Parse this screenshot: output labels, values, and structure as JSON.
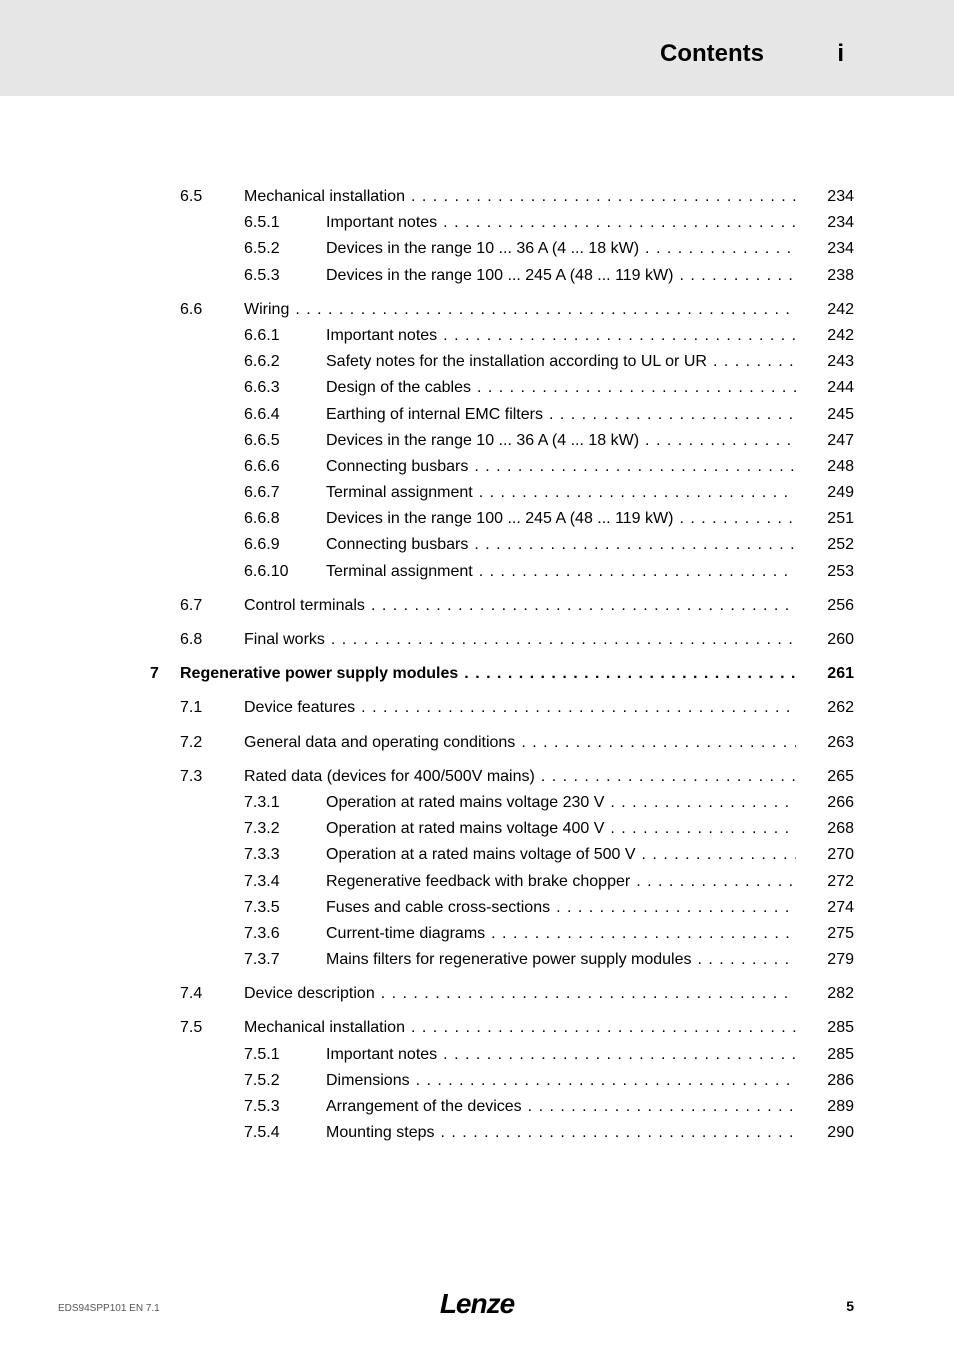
{
  "header": {
    "title": "Contents",
    "marker": "i"
  },
  "toc": [
    {
      "level": "sec",
      "num": "6.5",
      "title": "Mechanical installation",
      "page": "234",
      "gap": false
    },
    {
      "level": "sub",
      "num": "6.5.1",
      "title": "Important notes",
      "page": "234"
    },
    {
      "level": "sub",
      "num": "6.5.2",
      "title": "Devices in the range 10 ... 36 A (4 ... 18 kW)",
      "page": "234"
    },
    {
      "level": "sub",
      "num": "6.5.3",
      "title": "Devices in the range 100 ... 245 A (48 ... 119 kW)",
      "page": "238"
    },
    {
      "level": "sec",
      "num": "6.6",
      "title": "Wiring",
      "page": "242",
      "gap": true
    },
    {
      "level": "sub",
      "num": "6.6.1",
      "title": "Important notes",
      "page": "242"
    },
    {
      "level": "sub",
      "num": "6.6.2",
      "title": "Safety notes for the installation according to UL  or UR",
      "page": "243"
    },
    {
      "level": "sub",
      "num": "6.6.3",
      "title": "Design of the cables",
      "page": "244"
    },
    {
      "level": "sub",
      "num": "6.6.4",
      "title": "Earthing of internal EMC filters",
      "page": "245"
    },
    {
      "level": "sub",
      "num": "6.6.5",
      "title": "Devices in the range 10 ... 36 A (4 ... 18 kW)",
      "page": "247"
    },
    {
      "level": "sub",
      "num": "6.6.6",
      "title": "Connecting busbars",
      "page": "248"
    },
    {
      "level": "sub",
      "num": "6.6.7",
      "title": "Terminal assignment",
      "page": "249"
    },
    {
      "level": "sub",
      "num": "6.6.8",
      "title": "Devices in the range 100 ... 245 A (48 ... 119 kW)",
      "page": "251"
    },
    {
      "level": "sub",
      "num": "6.6.9",
      "title": "Connecting busbars",
      "page": "252"
    },
    {
      "level": "sub",
      "num": "6.6.10",
      "title": "Terminal assignment",
      "page": "253"
    },
    {
      "level": "sec",
      "num": "6.7",
      "title": "Control terminals",
      "page": "256",
      "gap": true
    },
    {
      "level": "sec",
      "num": "6.8",
      "title": "Final works",
      "page": "260",
      "gap": true
    },
    {
      "level": "chap",
      "num": "7",
      "title": "Regenerative power supply modules",
      "page": "261",
      "gap": true,
      "bold": true
    },
    {
      "level": "sec",
      "num": "7.1",
      "title": "Device features",
      "page": "262",
      "gap": true
    },
    {
      "level": "sec",
      "num": "7.2",
      "title": "General data and operating conditions",
      "page": "263",
      "gap": true
    },
    {
      "level": "sec",
      "num": "7.3",
      "title": "Rated data (devices for 400/500V mains)",
      "page": "265",
      "gap": true
    },
    {
      "level": "sub",
      "num": "7.3.1",
      "title": "Operation at rated mains voltage 230 V",
      "page": "266"
    },
    {
      "level": "sub",
      "num": "7.3.2",
      "title": "Operation at rated mains voltage 400 V",
      "page": "268"
    },
    {
      "level": "sub",
      "num": "7.3.3",
      "title": "Operation at a rated mains voltage of 500 V",
      "page": "270"
    },
    {
      "level": "sub",
      "num": "7.3.4",
      "title": "Regenerative feedback with brake chopper",
      "page": "272"
    },
    {
      "level": "sub",
      "num": "7.3.5",
      "title": "Fuses and cable cross-sections",
      "page": "274"
    },
    {
      "level": "sub",
      "num": "7.3.6",
      "title": "Current-time diagrams",
      "page": "275"
    },
    {
      "level": "sub",
      "num": "7.3.7",
      "title": "Mains filters for regenerative power supply modules",
      "page": "279"
    },
    {
      "level": "sec",
      "num": "7.4",
      "title": "Device description",
      "page": "282",
      "gap": true
    },
    {
      "level": "sec",
      "num": "7.5",
      "title": "Mechanical installation",
      "page": "285",
      "gap": true
    },
    {
      "level": "sub",
      "num": "7.5.1",
      "title": "Important notes",
      "page": "285"
    },
    {
      "level": "sub",
      "num": "7.5.2",
      "title": "Dimensions",
      "page": "286"
    },
    {
      "level": "sub",
      "num": "7.5.3",
      "title": "Arrangement of the devices",
      "page": "289"
    },
    {
      "level": "sub",
      "num": "7.5.4",
      "title": "Mounting steps",
      "page": "290"
    }
  ],
  "footer": {
    "left": "EDS94SPP101  EN  7.1",
    "logo": "Lenze",
    "page": "5"
  }
}
